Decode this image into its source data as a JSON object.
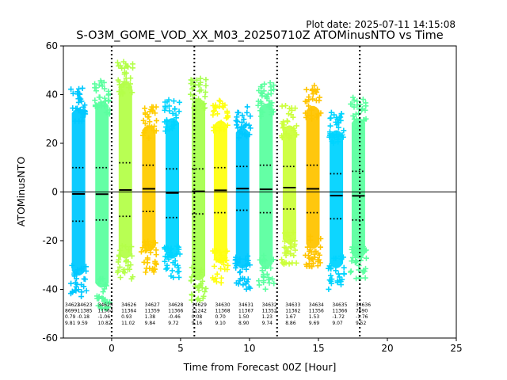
{
  "plot_date": "Plot date: 2025-07-11 14:15:08",
  "chart_data": {
    "type": "scatter",
    "title": "S-O3M_GOME_VOD_XX_M03_20250710Z ATOMinusNTO vs Time",
    "xlabel": "Time from Forecast 00Z [Hour]",
    "ylabel": "ATOMinusNTO",
    "xlim": [
      -3.5,
      25
    ],
    "ylim": [
      -60,
      60
    ],
    "xticks": [
      0,
      5,
      10,
      15,
      20,
      25
    ],
    "yticks": [
      -60,
      -40,
      -20,
      0,
      20,
      40,
      60
    ],
    "grid": false,
    "zero_line": 0,
    "vertical_lines": [
      0,
      6,
      12,
      18
    ],
    "columns": [
      {
        "x": -2.4,
        "color": "#00c8ff",
        "mean": -0.8,
        "upper": 10.0,
        "lower": -12.0,
        "max": 43,
        "min": -43
      },
      {
        "x": -0.7,
        "color": "#5cffa0",
        "mean": -0.9,
        "upper": 10.0,
        "lower": -11.5,
        "max": 46,
        "min": -48
      },
      {
        "x": 1.0,
        "color": "#b4ff4a",
        "mean": 0.8,
        "upper": 12.0,
        "lower": -10.0,
        "max": 54,
        "min": -36
      },
      {
        "x": 2.7,
        "color": "#ffcc00",
        "mean": 1.3,
        "upper": 11.0,
        "lower": -8.0,
        "max": 36,
        "min": -33
      },
      {
        "x": 4.4,
        "color": "#00d4ff",
        "mean": -0.4,
        "upper": 9.5,
        "lower": -10.5,
        "max": 39,
        "min": -36
      },
      {
        "x": 6.3,
        "color": "#a8ff50",
        "mean": 0.3,
        "upper": 9.5,
        "lower": -9.0,
        "max": 47,
        "min": -45
      },
      {
        "x": 7.9,
        "color": "#ffff10",
        "mean": 0.7,
        "upper": 10.0,
        "lower": -8.5,
        "max": 38,
        "min": -38
      },
      {
        "x": 9.5,
        "color": "#00c8ff",
        "mean": 1.4,
        "upper": 10.5,
        "lower": -7.5,
        "max": 35,
        "min": -40
      },
      {
        "x": 11.2,
        "color": "#5cffa0",
        "mean": 1.1,
        "upper": 11.0,
        "lower": -8.5,
        "max": 45,
        "min": -40
      },
      {
        "x": 12.9,
        "color": "#ccff3c",
        "mean": 1.8,
        "upper": 10.5,
        "lower": -7.0,
        "max": 36,
        "min": -30
      },
      {
        "x": 14.6,
        "color": "#ffc400",
        "mean": 1.3,
        "upper": 11.0,
        "lower": -8.5,
        "max": 44,
        "min": -32
      },
      {
        "x": 16.3,
        "color": "#00d4ff",
        "mean": -1.5,
        "upper": 7.5,
        "lower": -11.0,
        "max": 34,
        "min": -40
      },
      {
        "x": 17.9,
        "color": "#5cffa0",
        "mean": -1.6,
        "upper": 8.5,
        "lower": -11.5,
        "max": 39,
        "min": -36
      }
    ],
    "annotations": [
      {
        "x": -4.0,
        "lines": [
          "34622",
          "8699",
          "0.79",
          "9.81"
        ]
      },
      {
        "x": -2.5,
        "lines": [
          "34623",
          "11385",
          "-0.18",
          "9.59"
        ]
      },
      {
        "x": -1.0,
        "lines": [
          "34625",
          "11364",
          "-1.06",
          "10.82"
        ]
      },
      {
        "x": 0.7,
        "lines": [
          "34626",
          "11364",
          "0.93",
          "11.02"
        ]
      },
      {
        "x": 2.4,
        "lines": [
          "34627",
          "11359",
          "1.38",
          "9.84"
        ]
      },
      {
        "x": 4.1,
        "lines": [
          "34628",
          "11366",
          "-0.46",
          "9.72"
        ]
      },
      {
        "x": 5.8,
        "lines": [
          "34629",
          "11242",
          "0.08",
          "9.16"
        ]
      },
      {
        "x": 7.5,
        "lines": [
          "34630",
          "11368",
          "0.70",
          "9.10"
        ]
      },
      {
        "x": 9.2,
        "lines": [
          "34631",
          "11367",
          "1.50",
          "8.90"
        ]
      },
      {
        "x": 10.9,
        "lines": [
          "34632",
          "11352",
          "1.23",
          "9.74"
        ]
      },
      {
        "x": 12.6,
        "lines": [
          "34633",
          "11362",
          "1.67",
          "8.86"
        ]
      },
      {
        "x": 14.3,
        "lines": [
          "34634",
          "11356",
          "1.53",
          "9.69"
        ]
      },
      {
        "x": 16.0,
        "lines": [
          "34635",
          "11366",
          "-1.72",
          "9.07"
        ]
      },
      {
        "x": 17.7,
        "lines": [
          "34636",
          "7690",
          "-1.76",
          "9.52"
        ]
      }
    ]
  }
}
